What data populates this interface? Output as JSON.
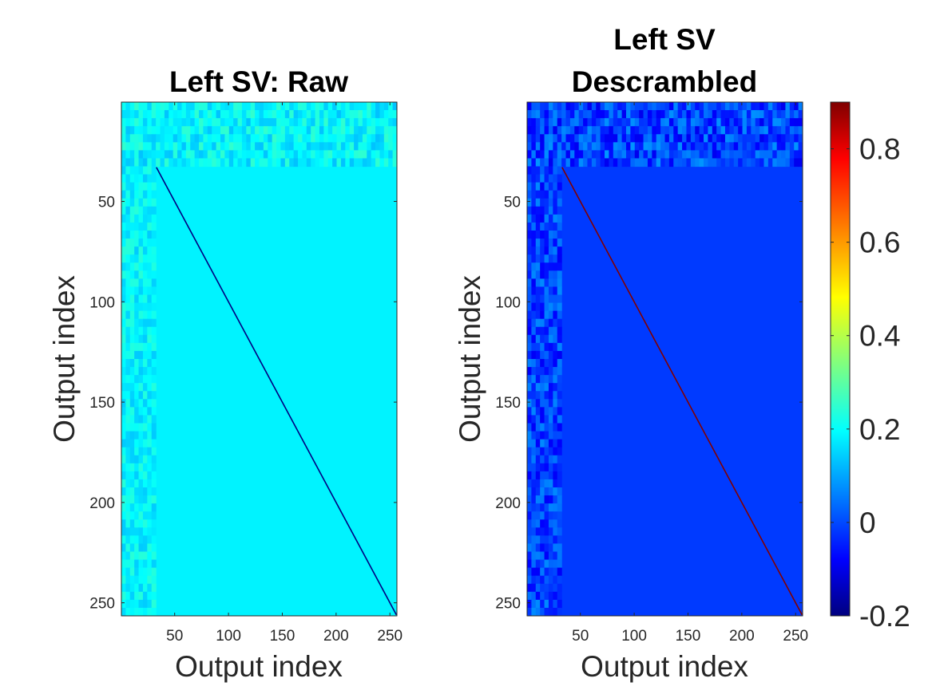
{
  "chart_data": [
    {
      "type": "heatmap",
      "title": "Left SV: Raw",
      "xlabel": "Output index",
      "ylabel": "Output index",
      "xlim": [
        1,
        256
      ],
      "ylim": [
        1,
        256
      ],
      "y_reversed": true,
      "xticks": [
        "50",
        "100",
        "150",
        "200",
        "250"
      ],
      "yticks": [
        "50",
        "100",
        "150",
        "200",
        "250"
      ],
      "colormap": "jet",
      "description_values": {
        "background_level": 0.2,
        "diagonal_level": -0.2,
        "diagonal_start": 33,
        "noisy_header_rows": [
          1,
          32
        ],
        "noisy_left_columns": [
          1,
          32
        ]
      }
    },
    {
      "type": "heatmap",
      "title_lines": [
        "Left SV",
        "Descrambled"
      ],
      "xlabel": "Output index",
      "ylabel": "Output index",
      "xlim": [
        1,
        256
      ],
      "ylim": [
        1,
        256
      ],
      "y_reversed": true,
      "xticks": [
        "50",
        "100",
        "150",
        "200",
        "250"
      ],
      "yticks": [
        "50",
        "100",
        "150",
        "200",
        "250"
      ],
      "colormap": "jet",
      "description_values": {
        "background_level": 0.0,
        "diagonal_level": 0.9,
        "diagonal_start": 33,
        "noisy_header_rows": [
          1,
          32
        ],
        "noisy_left_columns": [
          1,
          32
        ]
      }
    }
  ],
  "colorbar": {
    "range": [
      -0.2,
      0.9
    ],
    "ticks": [
      {
        "value": 0.8,
        "label": "0.8"
      },
      {
        "value": 0.6,
        "label": "0.6"
      },
      {
        "value": 0.4,
        "label": "0.4"
      },
      {
        "value": 0.2,
        "label": "0.2"
      },
      {
        "value": 0,
        "label": "0"
      },
      {
        "value": -0.2,
        "label": "-0.2"
      }
    ]
  }
}
